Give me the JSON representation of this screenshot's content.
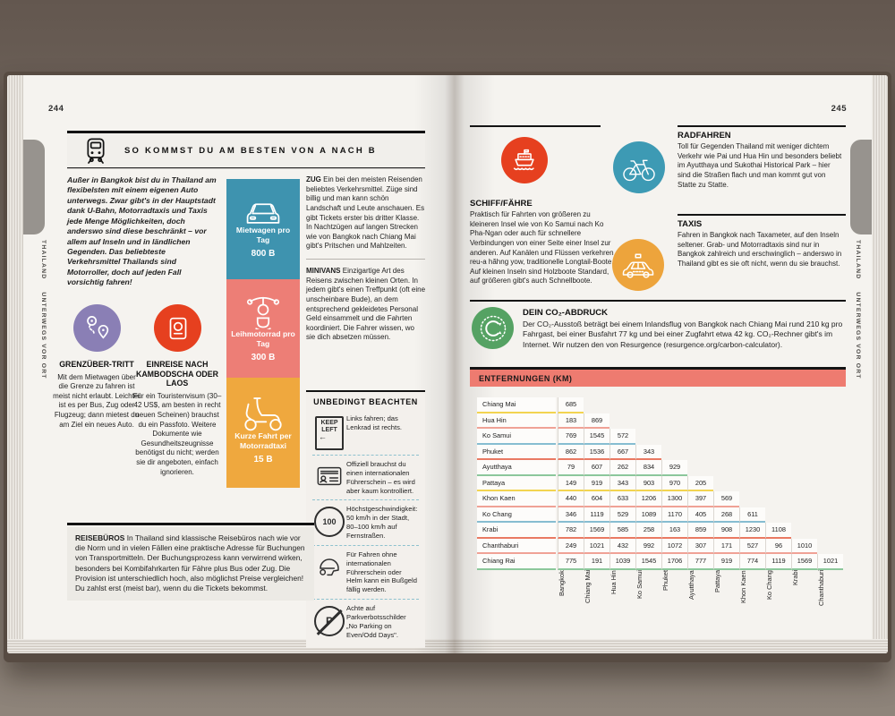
{
  "book": {
    "left_page_number": "244",
    "right_page_number": "245",
    "sidebar_region": "THAILAND",
    "sidebar_section": "UNTERWEGS VOR ORT"
  },
  "header": {
    "title": "SO KOMMST DU AM BESTEN VON A NACH B",
    "icon": "train-icon"
  },
  "intro": "Außer in Bangkok bist du in Thailand am flexibelsten mit einem eigenen Auto unterwegs. Zwar gibt's in der Hauptstadt dank U-Bahn, Motorradtaxis und Taxis jede Menge Möglichkeiten, doch anderswo sind diese beschränkt – vor allem auf Inseln und in ländlichen Gegenden. Das beliebteste Verkehrsmittel Thailands sind Motorroller, doch auf jeden Fall vorsichtig fahren!",
  "features": {
    "border": {
      "title": "GRENZÜBER-TRITT",
      "text": "Mit dem Mietwagen über die Grenze zu fahren ist meist nicht erlaubt. Leichter ist es per Bus, Zug oder Flugzeug; dann mietest du am Ziel ein neues Auto.",
      "color": "#8a7fb5",
      "icon": "route-pins-icon"
    },
    "entry": {
      "title": "EINREISE NACH KAMBODSCHA ODER LAOS",
      "text": "Für ein Touristenvisum (30–42 US$, am besten in recht neuen Scheinen) brauchst du ein Passfoto. Weitere Dokumente wie Gesundheitszeugnisse benötigst du nicht; werden sie dir angeboten, einfach ignorieren.",
      "color": "#e6401f",
      "icon": "passport-icon"
    }
  },
  "prices": [
    {
      "label": "Mietwagen pro Tag",
      "value": "800 B",
      "color": "#3e93af",
      "icon": "car-icon"
    },
    {
      "label": "Leihmotorrad pro Tag",
      "value": "300 B",
      "color": "#ed7e76",
      "icon": "motorbike-icon"
    },
    {
      "label": "Kurze Fahrt per Motorradtaxi",
      "value": "15 B",
      "color": "#efa83e",
      "icon": "scooter-icon"
    }
  ],
  "zug": {
    "title": "ZUG",
    "text": "Ein bei den meisten Reisenden beliebtes Verkehrsmittel. Züge sind billig und man kann schön Landschaft und Leute anschauen. Es gibt Tickets erster bis dritter Klasse. In Nachtzügen auf langen Strecken wie von Bangkok nach Chiang Mai gibt's Pritschen und Mahlzeiten."
  },
  "minivans": {
    "title": "MINIVANS",
    "text": "Einzigartige Art des Reisens zwischen kleinen Orten. In jedem gibt's einen Treffpunkt (oft eine unscheinbare Bude), an dem entsprechend gekleidetes Personal Geld einsammelt und die Fahrten koordiniert. Die Fahrer wissen, wo sie dich absetzen müssen."
  },
  "beachten": {
    "title": "UNBEDINGT BEACHTEN",
    "items": [
      {
        "icon": "keep-left-sign-icon",
        "icon_lines": [
          "KEEP",
          "LEFT"
        ],
        "icon_arrow": "←",
        "text": "Links fahren; das Lenkrad ist rechts."
      },
      {
        "icon": "driver-license-icon",
        "text": "Offiziell brauchst du einen internationalen Führerschein – es wird aber kaum kontrolliert."
      },
      {
        "icon": "speed-limit-icon",
        "icon_text": "100",
        "text": "Höchstgeschwindigkeit: 50 km/h in der Stadt, 80–100 km/h auf Fernstraßen."
      },
      {
        "icon": "helmet-icon",
        "text": "Für Fahren ohne internationalen Führerschein oder Helm kann ein Bußgeld fällig werden."
      },
      {
        "icon": "no-parking-icon",
        "icon_text": "P",
        "text": "Achte auf Parkverbotsschilder „No Parking on Even/Odd Days\"."
      }
    ]
  },
  "reisebueros": {
    "title": "REISEBÜROS",
    "text": "In Thailand sind klassische Reisebüros nach wie vor die Norm und in vielen Fällen eine praktische Adresse für Buchungen von Transportmitteln. Der Buchungsprozess kann verwirrend wirken, besonders bei Kombifahrkarten für Fähre plus Bus oder Zug. Die Provision ist unterschiedlich hoch, also möglichst Preise vergleichen! Du zahlst erst (meist bar), wenn du die Tickets bekommst."
  },
  "schiff": {
    "title": "SCHIFF/FÄHRE",
    "text": "Praktisch für Fahrten von größeren zu kleineren Insel wie von Ko Samui nach Ko Pha-Ngan oder auch für schnellere Verbindungen von einer Seite einer Insel zur anderen. Auf Kanälen und Flüssen verkehren reu-a hăhng yow, traditionelle Longtail-Boote. Auf kleinen Inseln sind Holzboote Standard, auf größeren gibt's auch Schnellboote.",
    "color": "#e6401f",
    "icon": "ferry-icon"
  },
  "radfahren": {
    "title": "RADFAHREN",
    "text": "Toll für Gegenden Thailand mit weniger dichtem Verkehr wie Pai und Hua Hin und besonders beliebt im Ayutthaya und Sukothai Historical Park – hier sind die Straßen flach und man kommt gut von Statte zu Statte.",
    "color": "#3d9ab4",
    "icon": "bicycle-icon"
  },
  "taxis": {
    "title": "TAXIS",
    "text": "Fahren in Bangkok nach Taxameter, auf den Inseln seltener. Grab- und Motorradtaxis sind nur in Bangkok zahlreich und erschwinglich – anderswo in Thailand gibt es sie oft nicht, wenn du sie brauchst.",
    "color": "#eda43c",
    "icon": "taxi-icon"
  },
  "co2": {
    "title": "DEIN CO₂-ABDRUCK",
    "text": "Der CO₂-Ausstoß beträgt bei einem Inlandsflug von Bangkok nach Chiang Mai rund 210 kg pro Fahrgast, bei einer Busfahrt 77 kg und bei einer Zugfahrt etwa 42 kg. CO₂-Rechner gibt's im Internet. Wir nutzen den von Resurgence (resurgence.org/carbon-calculator).",
    "color": "#55a263",
    "icon": "co2-recycle-icon"
  },
  "distances": {
    "title": "ENTFERNUNGEN (KM)",
    "header_color": "#ee7b70",
    "columns": [
      "Bangkok",
      "Chiang Mai",
      "Hua Hin",
      "Ko Samui",
      "Phuket",
      "Ayutthaya",
      "Pattaya",
      "Khon Kaen",
      "Ko Chang",
      "Krabi",
      "Chanthaburi"
    ],
    "rows": [
      {
        "label": "Chiang Mai",
        "values": [
          685
        ]
      },
      {
        "label": "Hua Hin",
        "values": [
          183,
          869
        ]
      },
      {
        "label": "Ko Samui",
        "values": [
          769,
          1545,
          572
        ]
      },
      {
        "label": "Phuket",
        "values": [
          862,
          1536,
          667,
          343
        ]
      },
      {
        "label": "Ayutthaya",
        "values": [
          79,
          607,
          262,
          834,
          929
        ]
      },
      {
        "label": "Pattaya",
        "values": [
          149,
          919,
          343,
          903,
          970,
          205
        ]
      },
      {
        "label": "Khon Kaen",
        "values": [
          440,
          604,
          633,
          1206,
          1300,
          397,
          569
        ]
      },
      {
        "label": "Ko Chang",
        "values": [
          346,
          1119,
          529,
          1089,
          1170,
          405,
          268,
          611
        ]
      },
      {
        "label": "Krabi",
        "values": [
          782,
          1569,
          585,
          258,
          163,
          859,
          908,
          1230,
          1108
        ]
      },
      {
        "label": "Chanthaburi",
        "values": [
          249,
          1021,
          432,
          992,
          1072,
          307,
          171,
          527,
          96,
          1010
        ]
      },
      {
        "label": "Chiang Rai",
        "values": [
          775,
          191,
          1039,
          1545,
          1706,
          777,
          919,
          774,
          1119,
          1569,
          1021
        ]
      }
    ],
    "row_colors": [
      "#f2d450",
      "#f0a296",
      "#86bdd1",
      "#e97a63",
      "#8cc79b",
      "#f2d450",
      "#f0a296",
      "#86bdd1",
      "#e97a63",
      "#f0a296",
      "#8cc79b"
    ]
  }
}
